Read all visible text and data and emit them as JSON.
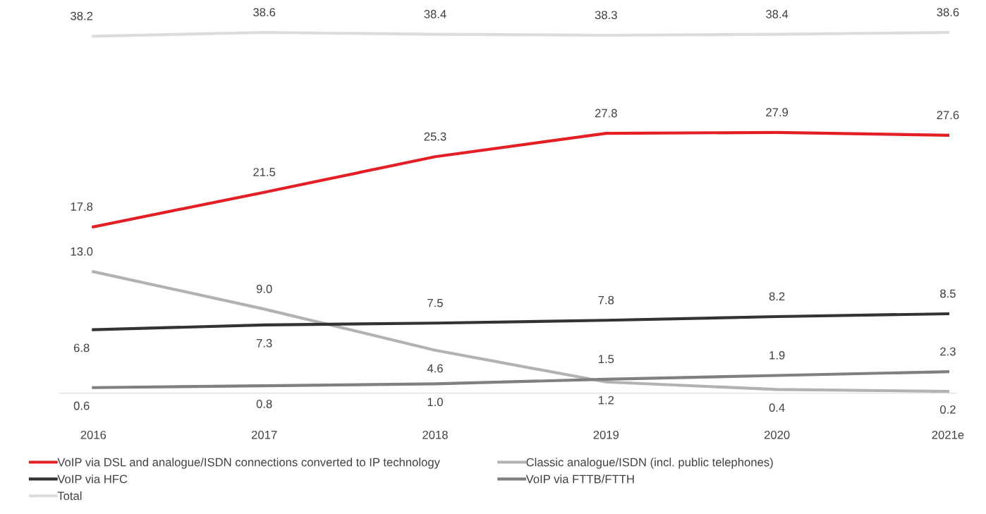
{
  "chart_data": {
    "type": "line",
    "categories": [
      "2016",
      "2017",
      "2018",
      "2019",
      "2020",
      "2021e"
    ],
    "series": [
      {
        "name": "VoIP via DSL and analogue/ISDN connections converted to IP technology",
        "color": "#e31e24",
        "values": [
          17.8,
          21.5,
          25.3,
          27.8,
          27.9,
          27.6
        ],
        "value_labels": [
          "17.8",
          "21.5",
          "25.3",
          "27.8",
          "27.9",
          "27.6"
        ]
      },
      {
        "name": "Classic analogue/ISDN (incl. public telephones)",
        "color": "#b2b2b2",
        "values": [
          13.0,
          9.0,
          4.6,
          1.2,
          0.4,
          0.2
        ],
        "value_labels": [
          "13.0",
          "9.0",
          "4.6",
          "1.2",
          "0.4",
          "0.2"
        ]
      },
      {
        "name": "VoIP via HFC",
        "color": "#333333",
        "values": [
          6.8,
          7.3,
          7.5,
          7.8,
          8.2,
          8.5
        ],
        "value_labels": [
          "6.8",
          "7.3",
          "7.5",
          "7.8",
          "8.2",
          "8.5"
        ]
      },
      {
        "name": "VoIP via FTTB/FTTH",
        "color": "#808080",
        "values": [
          0.6,
          0.8,
          1.0,
          1.5,
          1.9,
          2.3
        ],
        "value_labels": [
          "0.6",
          "0.8",
          "1.0",
          "1.5",
          "1.9",
          "2.3"
        ]
      },
      {
        "name": "Total",
        "color": "#dcdcdc",
        "values": [
          38.2,
          38.6,
          38.4,
          38.3,
          38.4,
          38.6
        ],
        "value_labels": [
          "38.2",
          "38.6",
          "38.4",
          "38.3",
          "38.4",
          "38.6"
        ]
      }
    ],
    "legend": "bottom",
    "marker": "none",
    "line_style": "solid"
  }
}
